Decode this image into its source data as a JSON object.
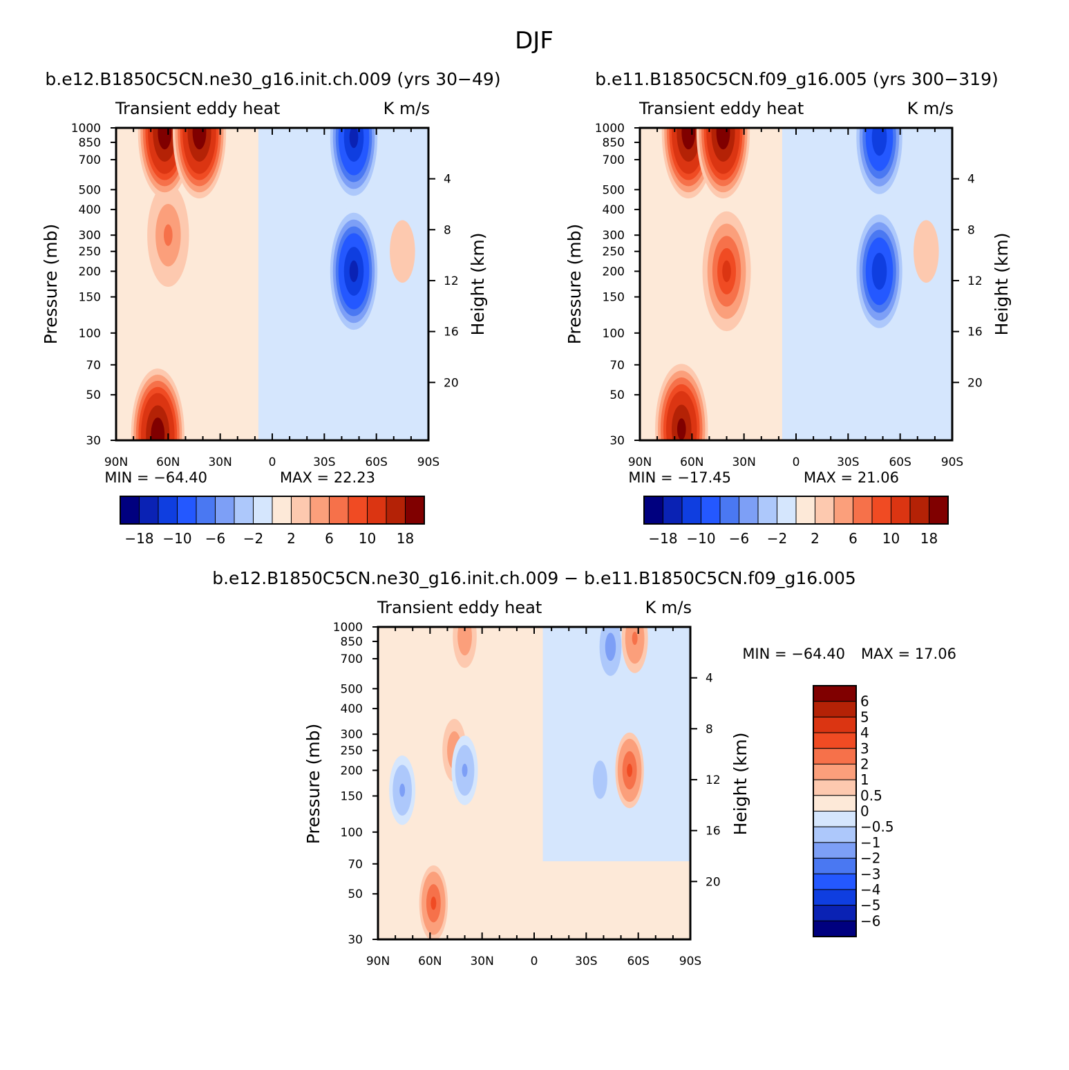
{
  "figure": {
    "title": "DJF"
  },
  "chart_data": [
    {
      "type": "heatmap",
      "title": "b.e12.B1850C5CN.ne30_g16.init.ch.009 (yrs 30-49)",
      "left_string": "Transient eddy heat",
      "right_string": "K m/s",
      "ylabel": "Pressure (mb)",
      "ylabel_right": "Height (km)",
      "x_tick_labels": [
        "90N",
        "60N",
        "30N",
        "0",
        "30S",
        "60S",
        "90S"
      ],
      "x_tick_values": [
        90,
        60,
        30,
        0,
        -30,
        -60,
        -90
      ],
      "y_tick_labels": [
        "30",
        "50",
        "70",
        "100",
        "150",
        "200",
        "250",
        "300",
        "400",
        "500",
        "700",
        "850",
        "1000"
      ],
      "y_tick_values": [
        30,
        50,
        70,
        100,
        150,
        200,
        250,
        300,
        400,
        500,
        700,
        850,
        1000
      ],
      "ylim": [
        1000,
        30
      ],
      "y_scale": "log",
      "height_tick_labels": [
        "4",
        "8",
        "12",
        "16",
        "20"
      ],
      "height_tick_values": [
        4,
        8,
        12,
        16,
        20
      ],
      "min_label": "MIN = -64.40",
      "max_label": "MAX = 22.23",
      "min": -64.4,
      "max": 22.23,
      "colorbar_orientation": "horizontal",
      "colorbar_labels": [
        "-18",
        "-10",
        "-6",
        "-2",
        "2",
        "6",
        "10",
        "18"
      ],
      "features": [
        {
          "lat": 66,
          "p": 32,
          "value": 20
        },
        {
          "lat": 60,
          "p": 300,
          "value": 6
        },
        {
          "lat": 62,
          "p": 950,
          "value": 20
        },
        {
          "lat": 42,
          "p": 950,
          "value": 20
        },
        {
          "lat": -47,
          "p": 200,
          "value": -18
        },
        {
          "lat": -47,
          "p": 900,
          "value": -18
        },
        {
          "lat": -75,
          "p": 250,
          "value": 3
        }
      ]
    },
    {
      "type": "heatmap",
      "title": "b.e11.B1850C5CN.f09_g16.005 (yrs 300-319)",
      "left_string": "Transient eddy heat",
      "right_string": "K m/s",
      "ylabel": "Pressure (mb)",
      "ylabel_right": "Height (km)",
      "x_tick_labels": [
        "90N",
        "60N",
        "30N",
        "0",
        "30S",
        "60S",
        "90S"
      ],
      "x_tick_values": [
        90,
        60,
        30,
        0,
        -30,
        -60,
        -90
      ],
      "y_tick_labels": [
        "30",
        "50",
        "70",
        "100",
        "150",
        "200",
        "250",
        "300",
        "400",
        "500",
        "700",
        "850",
        "1000"
      ],
      "y_tick_values": [
        30,
        50,
        70,
        100,
        150,
        200,
        250,
        300,
        400,
        500,
        700,
        850,
        1000
      ],
      "ylim": [
        1000,
        30
      ],
      "y_scale": "log",
      "height_tick_labels": [
        "4",
        "8",
        "12",
        "16",
        "20"
      ],
      "height_tick_values": [
        4,
        8,
        12,
        16,
        20
      ],
      "min_label": "MIN = -17.45",
      "max_label": "MAX = 21.06",
      "min": -17.45,
      "max": 21.06,
      "colorbar_orientation": "horizontal",
      "colorbar_labels": [
        "-18",
        "-10",
        "-6",
        "-2",
        "2",
        "6",
        "10",
        "18"
      ],
      "features": [
        {
          "lat": 66,
          "p": 34,
          "value": 18
        },
        {
          "lat": 40,
          "p": 200,
          "value": 10
        },
        {
          "lat": 62,
          "p": 950,
          "value": 20
        },
        {
          "lat": 42,
          "p": 950,
          "value": 20
        },
        {
          "lat": -48,
          "p": 200,
          "value": -16
        },
        {
          "lat": -48,
          "p": 900,
          "value": -16
        },
        {
          "lat": -75,
          "p": 250,
          "value": 3
        }
      ]
    },
    {
      "type": "heatmap",
      "title": "b.e12.B1850C5CN.ne30_g16.init.ch.009 - b.e11.B1850C5CN.f09_g16.005",
      "left_string": "Transient eddy heat",
      "right_string": "K m/s",
      "ylabel": "Pressure (mb)",
      "ylabel_right": "Height (km)",
      "x_tick_labels": [
        "90N",
        "60N",
        "30N",
        "0",
        "30S",
        "60S",
        "90S"
      ],
      "x_tick_values": [
        90,
        60,
        30,
        0,
        -30,
        -60,
        -90
      ],
      "y_tick_labels": [
        "30",
        "50",
        "70",
        "100",
        "150",
        "200",
        "250",
        "300",
        "400",
        "500",
        "700",
        "850",
        "1000"
      ],
      "y_tick_values": [
        30,
        50,
        70,
        100,
        150,
        200,
        250,
        300,
        400,
        500,
        700,
        850,
        1000
      ],
      "ylim": [
        1000,
        30
      ],
      "y_scale": "log",
      "height_tick_labels": [
        "4",
        "8",
        "12",
        "16",
        "20"
      ],
      "height_tick_values": [
        4,
        8,
        12,
        16,
        20
      ],
      "min_label": "MIN = -64.40",
      "max_label": "MAX = 17.06",
      "min": -64.4,
      "max": 17.06,
      "colorbar_orientation": "vertical",
      "colorbar_labels": [
        "6",
        "5",
        "4",
        "3",
        "2",
        "1",
        "0.5",
        "0",
        "-0.5",
        "-1",
        "-2",
        "-3",
        "-4",
        "-5",
        "-6"
      ],
      "features": [
        {
          "lat": 58,
          "p": 45,
          "value": 3
        },
        {
          "lat": 46,
          "p": 250,
          "value": 1.5
        },
        {
          "lat": 76,
          "p": 160,
          "value": -2
        },
        {
          "lat": 40,
          "p": 200,
          "value": -2
        },
        {
          "lat": -38,
          "p": 180,
          "value": -1.5
        },
        {
          "lat": -55,
          "p": 200,
          "value": 3
        },
        {
          "lat": -44,
          "p": 800,
          "value": -2.5
        },
        {
          "lat": 40,
          "p": 900,
          "value": 1.5
        },
        {
          "lat": -58,
          "p": 880,
          "value": 2
        }
      ]
    }
  ],
  "palette": {
    "anomaly_colors": [
      "#00007f",
      "#0a22b4",
      "#0f3ee0",
      "#2458ff",
      "#4a78f2",
      "#7d9ff6",
      "#adc8fb",
      "#d5e6fd",
      "#fde9d8",
      "#fdc9af",
      "#fb9f7b",
      "#f6714a",
      "#f04b23",
      "#db3512",
      "#b42206",
      "#800000"
    ]
  }
}
